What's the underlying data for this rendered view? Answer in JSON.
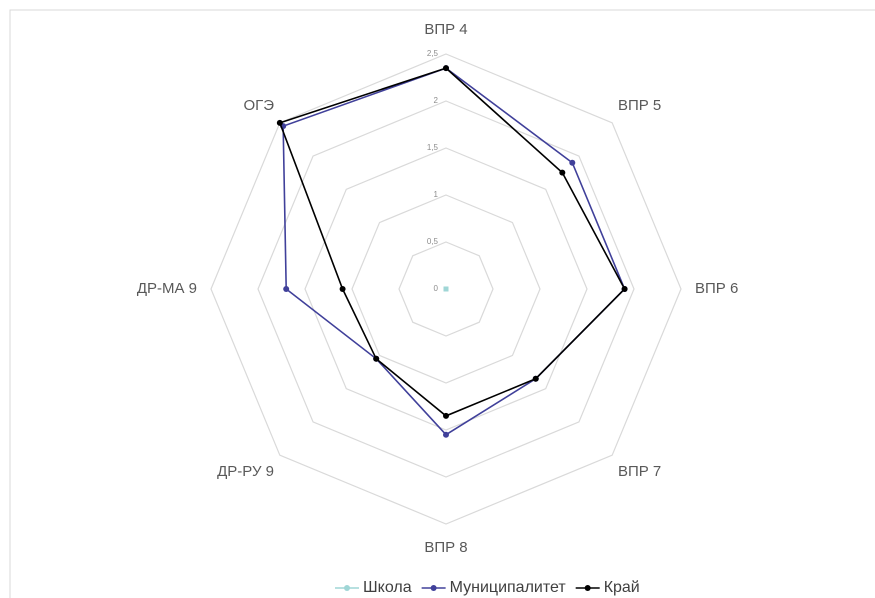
{
  "chart_data": {
    "type": "radar",
    "categories": [
      "ВПР 4",
      "ВПР 5",
      "ВПР 6",
      "ВПР 7",
      "ВПР 8",
      "ДР-РУ 9",
      "ДР-МА 9",
      "ОГЭ"
    ],
    "series": [
      {
        "name": "Школа",
        "color": "#9fd6d6",
        "values": [
          0,
          0,
          0,
          0,
          0,
          0,
          0,
          0
        ]
      },
      {
        "name": "Муниципалитет",
        "color": "#40409a",
        "values": [
          2.35,
          1.9,
          1.9,
          1.35,
          1.55,
          1.05,
          1.7,
          2.45
        ]
      },
      {
        "name": "Край",
        "color": "#000000",
        "values": [
          2.35,
          1.75,
          1.9,
          1.35,
          1.35,
          1.05,
          1.1,
          2.5
        ]
      }
    ],
    "ylim": [
      0,
      2.5
    ],
    "yticks": [
      0,
      {
        "value": 0.5,
        "label": "0,5"
      },
      1,
      {
        "value": 1.5,
        "label": "1,5"
      },
      2,
      {
        "value": 2.5,
        "label": "2,5"
      }
    ],
    "grid": true,
    "legend": "bottom"
  }
}
